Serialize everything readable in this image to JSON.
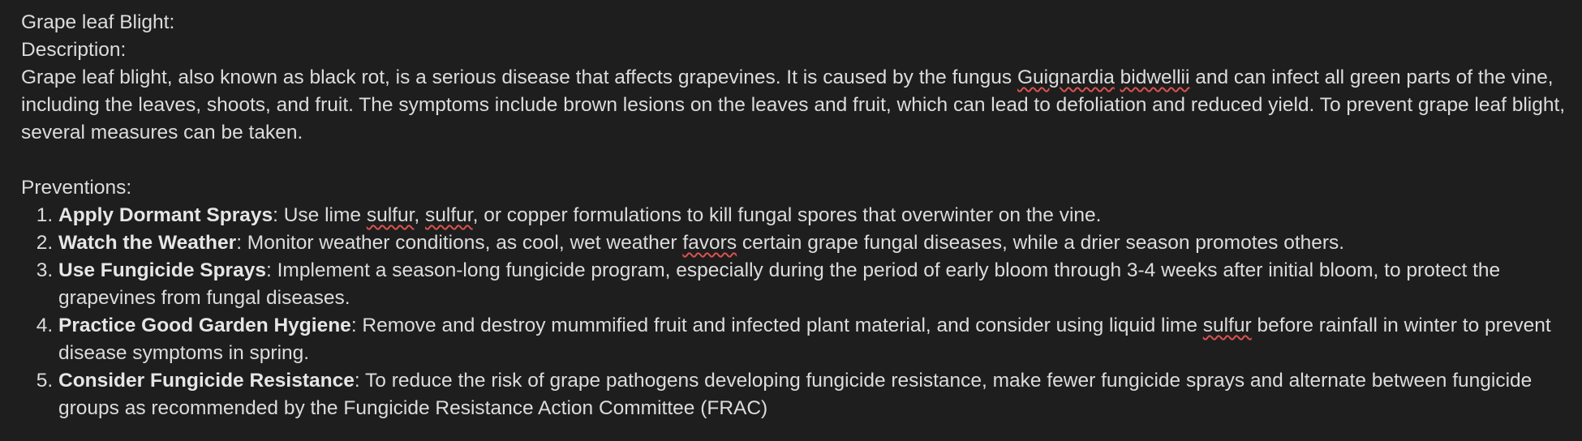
{
  "document": {
    "title": "Grape leaf Blight:",
    "description_heading": "Description:",
    "description": {
      "part1": "Grape leaf blight, also known as black rot, is a serious disease that affects grapevines. It is caused by the fungus ",
      "misspelled1": "Guignardia",
      "space1": " ",
      "misspelled2": "bidwellii",
      "part2": " and can infect all green parts of the vine, including the leaves, shoots, and fruit. The symptoms include brown lesions on the leaves and fruit, which can lead to defoliation and reduced yield. To prevent grape leaf blight, several measures can be taken."
    },
    "preventions_heading": "Preventions:",
    "preventions": [
      {
        "title": "Apply Dormant Sprays",
        "pre": ": Use lime ",
        "flag1": "sulfur",
        "mid": ", ",
        "flag2": "sulfur",
        "post": ", or copper formulations to kill fungal spores that overwinter on the vine."
      },
      {
        "title": "Watch the Weather",
        "pre": ": Monitor weather conditions, as cool, wet weather ",
        "flag1": "favors",
        "post": " certain grape fungal diseases, while a drier season promotes others."
      },
      {
        "title": "Use Fungicide Sprays",
        "text": ": Implement a season-long fungicide program, especially during the period of early bloom through 3-4 weeks after initial bloom, to protect the grapevines from fungal diseases."
      },
      {
        "title": "Practice Good Garden Hygiene",
        "pre": ": Remove and destroy mummified fruit and infected plant material, and consider using liquid lime ",
        "flag1": "sulfur",
        "post": " before rainfall in winter to prevent disease symptoms in spring."
      },
      {
        "title": "Consider Fungicide Resistance",
        "text": ": To reduce the risk of grape pathogens developing fungicide resistance, make fewer fungicide sprays and alternate between fungicide groups as recommended by the Fungicide Resistance Action Committee (FRAC)"
      }
    ]
  },
  "colors": {
    "background": "#1e1e1e",
    "text": "#dcdcdc",
    "spellcheck_underline": "#d9534f"
  }
}
